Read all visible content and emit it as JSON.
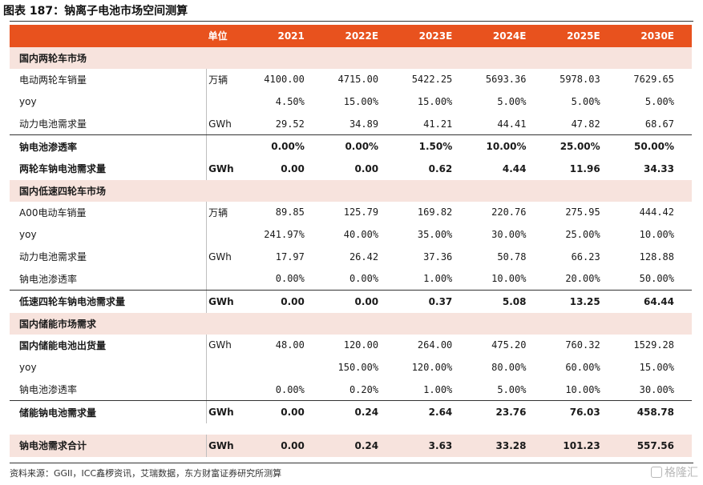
{
  "title": "图表 187：钠离子电池市场空间测算",
  "header": {
    "unit": "单位",
    "years": [
      "2021",
      "2022E",
      "2023E",
      "2024E",
      "2025E",
      "2030E"
    ]
  },
  "sections": [
    {
      "title": "国内两轮车市场",
      "rows": [
        {
          "label": "电动两轮车销量",
          "unit": "万辆",
          "values": [
            "4100.00",
            "4715.00",
            "5422.25",
            "5693.36",
            "5978.03",
            "7629.65"
          ],
          "bold": false,
          "underline": false
        },
        {
          "label": "yoy",
          "unit": "",
          "values": [
            "4.50%",
            "15.00%",
            "15.00%",
            "5.00%",
            "5.00%",
            "5.00%"
          ],
          "bold": false,
          "underline": false
        },
        {
          "label": "动力电池需求量",
          "unit": "GWh",
          "values": [
            "29.52",
            "34.89",
            "41.21",
            "44.41",
            "47.82",
            "68.67"
          ],
          "bold": false,
          "underline": true
        },
        {
          "label": "钠电池渗透率",
          "unit": "",
          "values": [
            "0.00%",
            "0.00%",
            "1.50%",
            "10.00%",
            "25.00%",
            "50.00%"
          ],
          "bold": true,
          "underline": false
        },
        {
          "label": "两轮车钠电池需求量",
          "unit": "GWh",
          "values": [
            "0.00",
            "0.00",
            "0.62",
            "4.44",
            "11.96",
            "34.33"
          ],
          "bold": true,
          "underline": false
        }
      ]
    },
    {
      "title": "国内低速四轮车市场",
      "rows": [
        {
          "label": "A00电动车销量",
          "unit": "万辆",
          "values": [
            "89.85",
            "125.79",
            "169.82",
            "220.76",
            "275.95",
            "444.42"
          ],
          "bold": false,
          "underline": false
        },
        {
          "label": "yoy",
          "unit": "",
          "values": [
            "241.97%",
            "40.00%",
            "35.00%",
            "30.00%",
            "25.00%",
            "10.00%"
          ],
          "bold": false,
          "underline": false
        },
        {
          "label": "动力电池需求量",
          "unit": "GWh",
          "values": [
            "17.97",
            "26.42",
            "37.36",
            "50.78",
            "66.23",
            "128.88"
          ],
          "bold": false,
          "underline": false
        },
        {
          "label": "钠电池渗透率",
          "unit": "",
          "values": [
            "0.00%",
            "0.00%",
            "1.00%",
            "10.00%",
            "20.00%",
            "50.00%"
          ],
          "bold": false,
          "underline": true
        },
        {
          "label": "低速四轮车钠电池需求量",
          "unit": "GWh",
          "values": [
            "0.00",
            "0.00",
            "0.37",
            "5.08",
            "13.25",
            "64.44"
          ],
          "bold": true,
          "underline": false
        }
      ]
    },
    {
      "title": "国内储能市场需求",
      "rows": [
        {
          "label": "国内储能电池出货量",
          "unit": "GWh",
          "values": [
            "48.00",
            "120.00",
            "264.00",
            "475.20",
            "760.32",
            "1529.28"
          ],
          "bold": false,
          "underline": false,
          "label_bold": true
        },
        {
          "label": "yoy",
          "unit": "",
          "values": [
            "",
            "150.00%",
            "120.00%",
            "80.00%",
            "60.00%",
            "15.00%"
          ],
          "bold": false,
          "underline": false
        },
        {
          "label": "钠电池渗透率",
          "unit": "",
          "values": [
            "0.00%",
            "0.20%",
            "1.00%",
            "5.00%",
            "10.00%",
            "30.00%"
          ],
          "bold": false,
          "underline": true
        },
        {
          "label": "储能钠电池需求量",
          "unit": "GWh",
          "values": [
            "0.00",
            "0.24",
            "2.64",
            "23.76",
            "76.03",
            "458.78"
          ],
          "bold": true,
          "underline": false
        }
      ]
    }
  ],
  "total": {
    "label": "钠电池需求合计",
    "unit": "GWh",
    "values": [
      "0.00",
      "0.24",
      "3.63",
      "33.28",
      "101.23",
      "557.56"
    ]
  },
  "source": "资料来源：GGII，ICC鑫椤资讯，艾瑞数据，东方财富证券研究所测算",
  "watermark": "格隆汇"
}
